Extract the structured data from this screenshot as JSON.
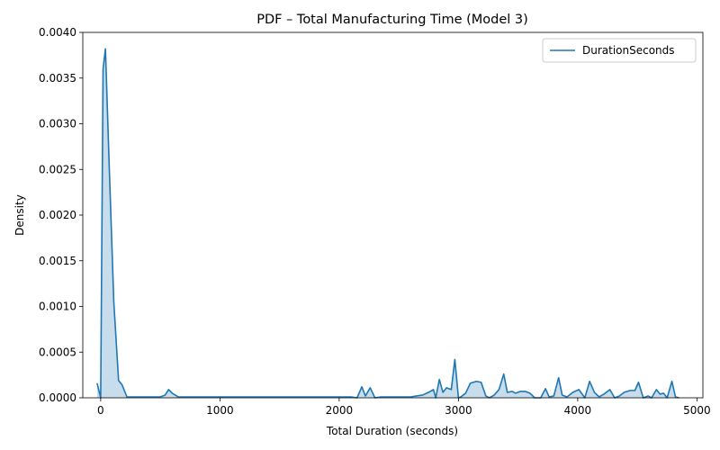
{
  "chart_data": {
    "type": "area",
    "title": "PDF – Total Manufacturing Time (Model 3)",
    "xlabel": "Total Duration (seconds)",
    "ylabel": "Density",
    "xlim": [
      -150,
      5050
    ],
    "ylim": [
      0,
      0.004
    ],
    "xticks": [
      0,
      1000,
      2000,
      3000,
      4000,
      5000
    ],
    "xtick_labels": [
      "0",
      "1000",
      "2000",
      "3000",
      "4000",
      "5000"
    ],
    "yticks": [
      0,
      0.0005,
      0.001,
      0.0015,
      0.002,
      0.0025,
      0.003,
      0.0035,
      0.004
    ],
    "ytick_labels": [
      "0.0000",
      "0.0005",
      "0.0010",
      "0.0015",
      "0.0020",
      "0.0025",
      "0.0030",
      "0.0035",
      "0.0040"
    ],
    "grid": false,
    "legend_position": "top-right",
    "colors": {
      "line": "#1f77b4",
      "fill": "#1f77b4"
    },
    "series": [
      {
        "name": "DurationSeconds",
        "x": [
          -30,
          0,
          20,
          40,
          70,
          110,
          150,
          180,
          220,
          260,
          300,
          350,
          400,
          450,
          500,
          540,
          570,
          600,
          650,
          700,
          750,
          800,
          900,
          1000,
          1500,
          2000,
          2100,
          2150,
          2190,
          2220,
          2260,
          2300,
          2350,
          2400,
          2500,
          2600,
          2650,
          2700,
          2750,
          2790,
          2810,
          2840,
          2870,
          2900,
          2940,
          2970,
          3000,
          3020,
          3060,
          3100,
          3150,
          3190,
          3230,
          3260,
          3300,
          3340,
          3380,
          3410,
          3450,
          3480,
          3520,
          3560,
          3600,
          3640,
          3690,
          3730,
          3760,
          3800,
          3840,
          3870,
          3910,
          3960,
          4010,
          4060,
          4100,
          4140,
          4180,
          4220,
          4270,
          4310,
          4350,
          4390,
          4440,
          4480,
          4510,
          4550,
          4590,
          4620,
          4660,
          4690,
          4720,
          4750,
          4790,
          4820,
          4850
        ],
        "y": [
          0.00016,
          0.0,
          0.0036,
          0.00382,
          0.0026,
          0.00105,
          0.00019,
          0.00014,
          1e-05,
          1e-05,
          1e-05,
          1e-05,
          1e-05,
          1e-05,
          1e-05,
          3e-05,
          9e-05,
          5e-05,
          1e-05,
          1e-05,
          1e-05,
          1e-05,
          1e-05,
          1e-05,
          1e-05,
          1e-05,
          1e-05,
          0.0,
          0.00012,
          2e-05,
          0.00011,
          0.0,
          1e-05,
          1e-05,
          1e-05,
          1e-05,
          2e-05,
          3e-05,
          6e-05,
          9e-05,
          0.0,
          0.0002,
          6e-05,
          0.00011,
          9e-05,
          0.00042,
          0.0,
          1e-05,
          5e-05,
          0.00016,
          0.00018,
          0.00017,
          2e-05,
          0.0,
          3e-05,
          9e-05,
          0.00026,
          6e-05,
          7e-05,
          5e-05,
          7e-05,
          7e-05,
          5e-05,
          0.0,
          0.0,
          0.0001,
          1e-05,
          2e-05,
          0.00022,
          3e-05,
          1e-05,
          6e-05,
          9e-05,
          0.0,
          0.00018,
          6e-05,
          1e-05,
          4e-05,
          9e-05,
          0.0,
          2e-05,
          6e-05,
          8e-05,
          8e-05,
          0.00017,
          0.0,
          2e-05,
          0.0,
          9e-05,
          4e-05,
          5e-05,
          0.0,
          0.00018,
          1e-05,
          0.0
        ]
      }
    ]
  }
}
